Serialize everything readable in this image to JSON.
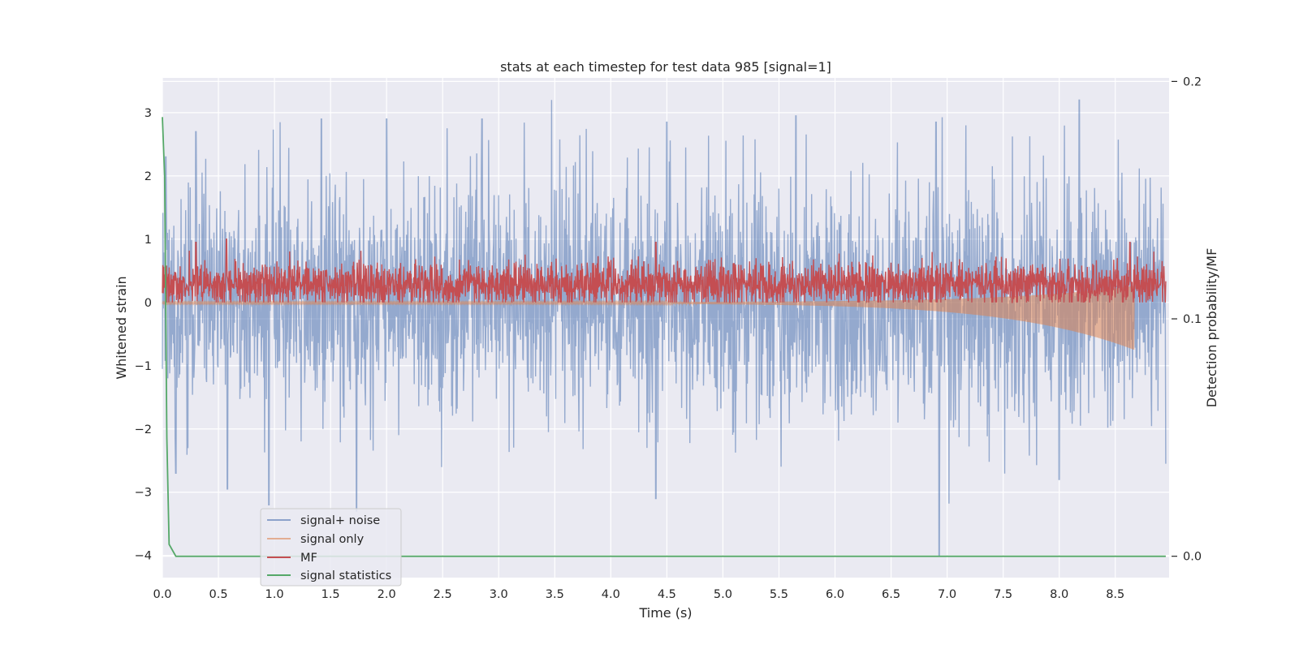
{
  "chart_data": {
    "type": "line",
    "title": "stats at each timestep for test data 985 [signal=1]",
    "xlabel": "Time (s)",
    "ylabel": "Whitened strain",
    "y2label": "Detection probability/MF",
    "xlim": [
      0.0,
      8.98
    ],
    "ylim": [
      -4.35,
      3.55
    ],
    "y2lim": [
      -0.009,
      0.2015
    ],
    "xticks": [
      "0.0",
      "0.5",
      "1.0",
      "1.5",
      "2.0",
      "2.5",
      "3.0",
      "3.5",
      "4.0",
      "4.5",
      "5.0",
      "5.5",
      "6.0",
      "6.5",
      "7.0",
      "7.5",
      "8.0",
      "8.5"
    ],
    "yticks": [
      "−4",
      "−3",
      "−2",
      "−1",
      "0",
      "1",
      "2",
      "3"
    ],
    "y2ticks": [
      "0.0",
      "0.1",
      "0.2"
    ],
    "grid": true,
    "legend_position": "lower-left",
    "series": [
      {
        "name": "signal+ noise",
        "axis": "left",
        "color": "#4c72b0",
        "style": "noise",
        "description_values": {
          "typical_low": -2.0,
          "typical_high": 2.0,
          "min": -4.0,
          "max": 3.2
        },
        "peaks": [
          [
            0.03,
            2.3
          ],
          [
            0.3,
            2.7
          ],
          [
            1.05,
            2.85
          ],
          [
            1.42,
            2.9
          ],
          [
            2.0,
            2.9
          ],
          [
            2.85,
            2.9
          ],
          [
            4.5,
            2.85
          ],
          [
            5.65,
            2.95
          ],
          [
            6.9,
            2.85
          ],
          [
            8.18,
            3.2
          ],
          [
            8.95,
            2.55
          ]
        ],
        "troughs": [
          [
            0.12,
            -2.7
          ],
          [
            0.58,
            -2.95
          ],
          [
            0.95,
            -3.2
          ],
          [
            1.73,
            -3.3
          ],
          [
            4.4,
            -3.1
          ],
          [
            6.93,
            -4.0
          ],
          [
            8.0,
            -2.8
          ],
          [
            8.95,
            -2.55
          ]
        ]
      },
      {
        "name": "signal only",
        "axis": "left",
        "color": "#dd8452",
        "style": "chirp",
        "x_start": 0.0,
        "x_end": 8.67,
        "amplitude_start": 0.02,
        "amplitude_end": 0.75
      },
      {
        "name": "MF",
        "axis": "left",
        "color": "#c44e52",
        "style": "band",
        "typical_low": 0.0,
        "typical_high": 0.6,
        "peaks": [
          [
            0.3,
            0.95
          ],
          [
            0.57,
            1.0
          ],
          [
            4.4,
            0.95
          ],
          [
            8.63,
            0.95
          ]
        ]
      },
      {
        "name": "signal statistics",
        "axis": "right",
        "color": "#55a868",
        "style": "line",
        "x": [
          0.0,
          0.02,
          0.04,
          0.06,
          0.12,
          8.95
        ],
        "y": [
          0.185,
          0.16,
          0.05,
          0.005,
          0.0,
          0.0
        ]
      }
    ]
  }
}
